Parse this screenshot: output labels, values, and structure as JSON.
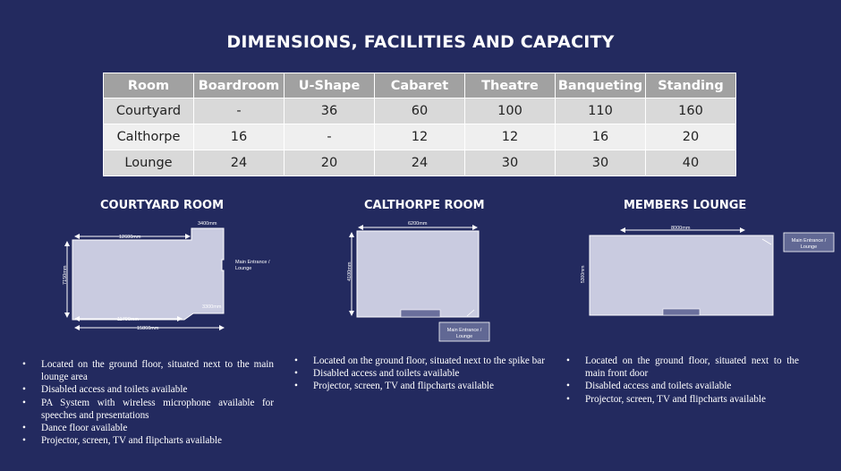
{
  "title": "DIMENSIONS, FACILITIES AND CAPACITY",
  "table": {
    "headers": [
      "Room",
      "Boardroom",
      "U-Shape",
      "Cabaret",
      "Theatre",
      "Banqueting",
      "Standing"
    ],
    "rows": [
      [
        "Courtyard",
        "-",
        "36",
        "60",
        "100",
        "110",
        "160"
      ],
      [
        "Calthorpe",
        "16",
        "-",
        "12",
        "12",
        "16",
        "20"
      ],
      [
        "Lounge",
        "24",
        "20",
        "24",
        "30",
        "30",
        "40"
      ]
    ]
  },
  "rooms": [
    {
      "title": "COURTYARD ROOM",
      "dims": [
        "12600mm",
        "3400mm",
        "7150mm",
        "11790mm",
        "3300mm",
        "15860mm"
      ],
      "entrance": "Main Entrance / Lounge",
      "bullets": [
        "Located on the ground floor, situated next to the main lounge area",
        "Disabled access and toilets available",
        "PA System with wireless microphone available for speeches and presentations",
        "Dance floor available",
        "Projector, screen, TV and flipcharts available"
      ]
    },
    {
      "title": "CALTHORPE ROOM",
      "dims": [
        "6200mm",
        "4100mm"
      ],
      "entrance": "Main Entrance / Lounge",
      "bullets": [
        "Located on the ground floor, situated next to the spike bar",
        "Disabled access and toilets available",
        "Projector, screen, TV and flipcharts available"
      ]
    },
    {
      "title": "MEMBERS LOUNGE",
      "dims": [
        "8000mm",
        "5300mm"
      ],
      "entrance": "Main Entrance / Lounge",
      "bullets": [
        "Located on the ground floor, situated next to the main front door",
        "Disabled access and toilets available",
        "Projector, screen, TV and flipcharts available"
      ]
    }
  ],
  "colors": {
    "background": "#232a5f",
    "table_header": "#a1a1a1",
    "row_dark": "#d9d9d9",
    "row_light": "#efefef",
    "floor": "#c9cbe0",
    "entrance_box": "#616894"
  }
}
